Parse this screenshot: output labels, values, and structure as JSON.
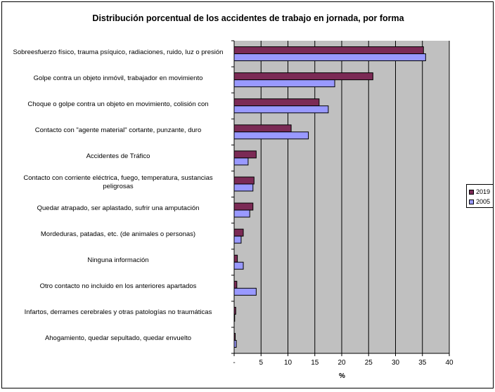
{
  "chart_data": {
    "type": "bar",
    "orientation": "horizontal",
    "title": "Distribución porcentual de los accidentes de trabajo en jornada, por forma",
    "xlabel": "%",
    "ylabel": "",
    "xlim": [
      0,
      40
    ],
    "x_ticks": [
      "-",
      "5",
      "10",
      "15",
      "20",
      "25",
      "30",
      "35",
      "40"
    ],
    "grid": true,
    "legend_position": "right",
    "categories": [
      "Sobreesfuerzo físico, trauma psíquico, radiaciones, ruido, luz o presión",
      "Golpe contra un objeto inmóvil, trabajador en movimiento",
      "Choque o golpe contra un objeto en movimiento, colisión con",
      "Contacto con \"agente material\" cortante, punzante, duro",
      "Accidentes de Tráfico",
      "Contacto con corriente eléctrica, fuego, temperatura, sustancias peligrosas",
      "Quedar atrapado, ser aplastado, sufrir una amputación",
      "Mordeduras, patadas, etc. (de animales o personas)",
      "Ninguna información",
      "Otro contacto no incluido en los anteriores apartados",
      "Infartos, derrames cerebrales y otras patologías no traumáticas",
      "Ahogamiento, quedar sepultado, quedar envuelto"
    ],
    "series": [
      {
        "name": "2019",
        "color": "#7b2a55",
        "values": [
          35.2,
          25.8,
          15.8,
          10.6,
          4.1,
          3.7,
          3.5,
          1.7,
          0.6,
          0.5,
          0.3,
          0.2
        ]
      },
      {
        "name": "2005",
        "color": "#9999ff",
        "values": [
          35.6,
          18.7,
          17.5,
          13.8,
          2.6,
          3.5,
          2.9,
          1.3,
          1.7,
          4.1,
          0.1,
          0.4
        ]
      }
    ],
    "plot_background": "#c0c0c0"
  }
}
